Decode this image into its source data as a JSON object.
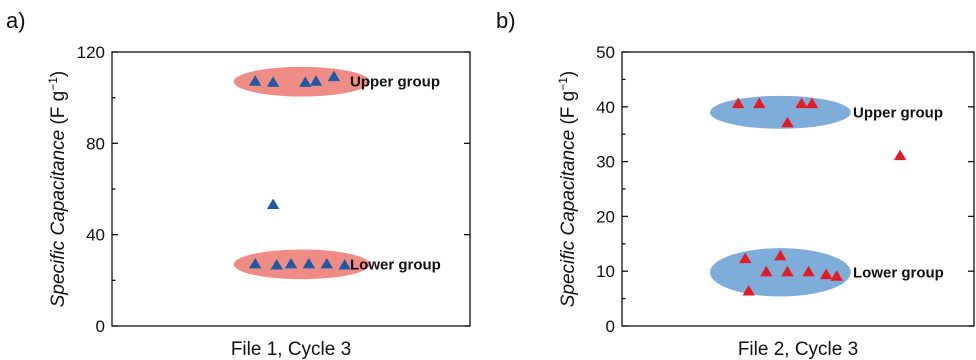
{
  "colors": {
    "panel_a_marker": "#1f5aa6",
    "panel_a_ellipse": "#f08c86",
    "panel_b_marker": "#e31b23",
    "panel_b_ellipse": "#7eadd9"
  },
  "chart_data": [
    {
      "type": "scatter",
      "panel_label": "a)",
      "xlabel": "File 1, Cycle 3",
      "ylabel_italic": "Specific Capacitance",
      "ylabel_units": " (F g",
      "ylabel_exp": "−1",
      "ylabel_close": ")",
      "ylim": [
        0,
        120
      ],
      "yticks": [
        0,
        40,
        80,
        120
      ],
      "ytick_labels": [
        "0",
        "40",
        "80",
        "120"
      ],
      "grid": false,
      "marker": "triangle",
      "xlim": [
        0,
        10
      ],
      "groups": [
        {
          "label": "Upper group",
          "ellipse_center": [
            5.3,
            107
          ],
          "ellipse_radii": [
            1.9,
            6.5
          ]
        },
        {
          "label": "Lower group",
          "ellipse_center": [
            5.3,
            27
          ],
          "ellipse_radii": [
            1.9,
            6.5
          ]
        }
      ],
      "points": [
        {
          "x": 4.0,
          "y": 107
        },
        {
          "x": 4.5,
          "y": 106.5
        },
        {
          "x": 5.4,
          "y": 106.5
        },
        {
          "x": 5.7,
          "y": 107
        },
        {
          "x": 6.2,
          "y": 109
        },
        {
          "x": 4.5,
          "y": 53
        },
        {
          "x": 4.0,
          "y": 27
        },
        {
          "x": 4.6,
          "y": 26.5
        },
        {
          "x": 5.0,
          "y": 27
        },
        {
          "x": 5.5,
          "y": 27
        },
        {
          "x": 6.0,
          "y": 27
        },
        {
          "x": 6.5,
          "y": 26.5
        }
      ]
    },
    {
      "type": "scatter",
      "panel_label": "b)",
      "xlabel": "File 2, Cycle 3",
      "ylabel_italic": "Specific Capacitance",
      "ylabel_units": " (F g",
      "ylabel_exp": "−1",
      "ylabel_close": ")",
      "ylim": [
        0,
        50
      ],
      "yticks": [
        0,
        10,
        20,
        30,
        40,
        50
      ],
      "ytick_labels": [
        "0",
        "10",
        "20",
        "30",
        "40",
        "50"
      ],
      "grid": false,
      "marker": "triangle",
      "xlim": [
        0,
        10
      ],
      "groups": [
        {
          "label": "Upper group",
          "ellipse_center": [
            4.5,
            39
          ],
          "ellipse_radii": [
            2.0,
            3.0
          ]
        },
        {
          "label": "Lower group",
          "ellipse_center": [
            4.5,
            9.8
          ],
          "ellipse_radii": [
            2.0,
            4.4
          ]
        }
      ],
      "points": [
        {
          "x": 3.3,
          "y": 40.5
        },
        {
          "x": 3.9,
          "y": 40.5
        },
        {
          "x": 5.1,
          "y": 40.5
        },
        {
          "x": 5.4,
          "y": 40.5
        },
        {
          "x": 4.7,
          "y": 37
        },
        {
          "x": 7.9,
          "y": 31
        },
        {
          "x": 3.5,
          "y": 12.2
        },
        {
          "x": 4.5,
          "y": 12.7
        },
        {
          "x": 4.1,
          "y": 9.8
        },
        {
          "x": 4.7,
          "y": 9.8
        },
        {
          "x": 5.3,
          "y": 9.8
        },
        {
          "x": 5.8,
          "y": 9.3
        },
        {
          "x": 6.1,
          "y": 9.0
        },
        {
          "x": 3.6,
          "y": 6.3
        }
      ]
    }
  ]
}
